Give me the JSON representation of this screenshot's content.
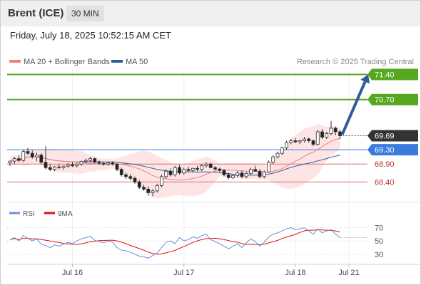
{
  "header": {
    "title": "Brent (ICE)",
    "timeframe": "30 MIN"
  },
  "datetime": "Friday, July 18, 2025 10:52:15 AM CET",
  "legend": {
    "ma20": "MA 20 + Bollinger Bands",
    "ma50": "MA 50",
    "credit": "Research © 2025 Trading Central"
  },
  "colors": {
    "ma20": "#f08080",
    "ma50": "#2e5c9a",
    "resistance": "#55a820",
    "support": "#e06868",
    "pivot": "#3b7be0",
    "current": "#333333",
    "arrow": "#2e5c9a",
    "up_candle": "#ffffff",
    "down_candle": "#222222",
    "rsi": "#6a8fd8",
    "rsi_ma": "#e01010"
  },
  "chart_data": [
    {
      "type": "candlestick",
      "ylim": [
        67.85,
        71.55
      ],
      "xlabels": [
        {
          "label": "Jul 16",
          "index": 14
        },
        {
          "label": "Jul 17",
          "index": 39
        },
        {
          "label": "Jul 18",
          "index": 64
        },
        {
          "label": "Jul 21",
          "index": 76
        }
      ],
      "levels": [
        {
          "value": 71.4,
          "label": "71.40",
          "style": "resistance"
        },
        {
          "value": 70.7,
          "label": "70.70",
          "style": "resistance"
        },
        {
          "value": 69.69,
          "label": "69.69",
          "style": "current"
        },
        {
          "value": 69.3,
          "label": "69.30",
          "style": "pivot"
        },
        {
          "value": 68.9,
          "label": "68.90",
          "style": "support"
        },
        {
          "value": 68.4,
          "label": "68.40",
          "style": "support"
        }
      ],
      "arrow": {
        "from_index": 74,
        "from_value": 69.72,
        "to_index": 80,
        "to_value": 71.4
      },
      "candles": [
        [
          68.93,
          69.0,
          68.85,
          68.98
        ],
        [
          68.98,
          69.1,
          68.9,
          69.05
        ],
        [
          69.05,
          69.15,
          68.95,
          69.0
        ],
        [
          69.0,
          69.3,
          68.95,
          69.25
        ],
        [
          69.25,
          69.35,
          69.15,
          69.2
        ],
        [
          69.2,
          69.28,
          69.05,
          69.1
        ],
        [
          69.1,
          69.22,
          68.98,
          69.15
        ],
        [
          69.15,
          69.2,
          68.9,
          68.95
        ],
        [
          68.95,
          69.4,
          68.75,
          68.8
        ],
        [
          68.8,
          68.9,
          68.7,
          68.75
        ],
        [
          68.75,
          68.85,
          68.7,
          68.82
        ],
        [
          68.82,
          68.9,
          68.76,
          68.8
        ],
        [
          68.8,
          68.86,
          68.74,
          68.84
        ],
        [
          68.84,
          68.92,
          68.8,
          68.88
        ],
        [
          68.88,
          68.95,
          68.82,
          68.85
        ],
        [
          68.85,
          68.92,
          68.8,
          68.9
        ],
        [
          68.9,
          69.0,
          68.85,
          68.97
        ],
        [
          68.97,
          69.05,
          68.92,
          69.0
        ],
        [
          69.0,
          69.1,
          68.95,
          69.05
        ],
        [
          69.05,
          69.08,
          68.92,
          68.95
        ],
        [
          68.95,
          69.0,
          68.88,
          68.92
        ],
        [
          68.92,
          68.96,
          68.85,
          68.9
        ],
        [
          68.9,
          68.96,
          68.85,
          68.93
        ],
        [
          68.93,
          68.98,
          68.86,
          68.9
        ],
        [
          68.9,
          68.92,
          68.7,
          68.75
        ],
        [
          68.75,
          68.8,
          68.55,
          68.6
        ],
        [
          68.6,
          68.66,
          68.48,
          68.55
        ],
        [
          68.55,
          68.62,
          68.44,
          68.5
        ],
        [
          68.5,
          68.55,
          68.35,
          68.4
        ],
        [
          68.4,
          68.45,
          68.2,
          68.25
        ],
        [
          68.25,
          68.32,
          68.15,
          68.2
        ],
        [
          68.2,
          68.28,
          68.02,
          68.1
        ],
        [
          68.1,
          68.2,
          68.0,
          68.15
        ],
        [
          68.15,
          68.35,
          68.1,
          68.3
        ],
        [
          68.3,
          68.6,
          68.25,
          68.55
        ],
        [
          68.55,
          68.75,
          68.5,
          68.7
        ],
        [
          68.7,
          68.78,
          68.55,
          68.6
        ],
        [
          68.6,
          68.85,
          68.55,
          68.8
        ],
        [
          68.8,
          68.88,
          68.6,
          68.65
        ],
        [
          68.65,
          68.8,
          68.6,
          68.75
        ],
        [
          68.75,
          68.82,
          68.68,
          68.72
        ],
        [
          68.72,
          68.8,
          68.66,
          68.78
        ],
        [
          68.78,
          68.85,
          68.7,
          68.75
        ],
        [
          68.75,
          68.9,
          68.7,
          68.85
        ],
        [
          68.85,
          68.95,
          68.8,
          68.9
        ],
        [
          68.9,
          68.94,
          68.78,
          68.8
        ],
        [
          68.8,
          68.84,
          68.72,
          68.76
        ],
        [
          68.76,
          68.8,
          68.68,
          68.72
        ],
        [
          68.72,
          68.76,
          68.55,
          68.6
        ],
        [
          68.6,
          68.66,
          68.48,
          68.52
        ],
        [
          68.52,
          68.62,
          68.48,
          68.58
        ],
        [
          68.58,
          68.7,
          68.52,
          68.65
        ],
        [
          68.65,
          68.72,
          68.5,
          68.55
        ],
        [
          68.55,
          68.68,
          68.5,
          68.64
        ],
        [
          68.64,
          68.8,
          68.6,
          68.75
        ],
        [
          68.75,
          68.85,
          68.68,
          68.7
        ],
        [
          68.7,
          68.76,
          68.5,
          68.55
        ],
        [
          68.55,
          68.72,
          68.5,
          68.68
        ],
        [
          68.68,
          69.0,
          68.65,
          68.95
        ],
        [
          68.95,
          69.15,
          68.9,
          69.1
        ],
        [
          69.1,
          69.25,
          69.05,
          69.2
        ],
        [
          69.2,
          69.38,
          69.15,
          69.35
        ],
        [
          69.35,
          69.55,
          69.3,
          69.5
        ],
        [
          69.5,
          69.6,
          69.45,
          69.55
        ],
        [
          69.55,
          69.62,
          69.48,
          69.52
        ],
        [
          69.52,
          69.58,
          69.46,
          69.55
        ],
        [
          69.55,
          69.65,
          69.5,
          69.6
        ],
        [
          69.6,
          69.64,
          69.5,
          69.55
        ],
        [
          69.55,
          69.58,
          69.4,
          69.45
        ],
        [
          69.45,
          69.85,
          69.42,
          69.8
        ],
        [
          69.8,
          69.88,
          69.6,
          69.65
        ],
        [
          69.65,
          69.8,
          69.6,
          69.75
        ],
        [
          69.75,
          70.1,
          69.7,
          69.9
        ],
        [
          69.9,
          69.95,
          69.7,
          69.8
        ],
        [
          69.8,
          69.86,
          69.6,
          69.69
        ]
      ]
    },
    {
      "type": "line",
      "name": "RSI",
      "series": [
        {
          "name": "RSI",
          "legend": "RSI"
        },
        {
          "name": "9MA",
          "legend": "9MA"
        }
      ],
      "ylim": [
        18,
        78
      ],
      "levels": [
        70,
        50,
        30
      ],
      "rsi": [
        52,
        55,
        50,
        58,
        54,
        50,
        53,
        45,
        43,
        40,
        44,
        42,
        45,
        48,
        46,
        50,
        53,
        55,
        57,
        51,
        49,
        47,
        50,
        48,
        40,
        36,
        35,
        33,
        30,
        27,
        26,
        24,
        28,
        32,
        40,
        48,
        50,
        46,
        55,
        50,
        52,
        56,
        54,
        58,
        60,
        52,
        49,
        46,
        42,
        38,
        42,
        46,
        40,
        47,
        53,
        49,
        42,
        48,
        56,
        60,
        62,
        65,
        68,
        70,
        67,
        68,
        70,
        65,
        60,
        68,
        62,
        65,
        67,
        60,
        55
      ]
    }
  ]
}
